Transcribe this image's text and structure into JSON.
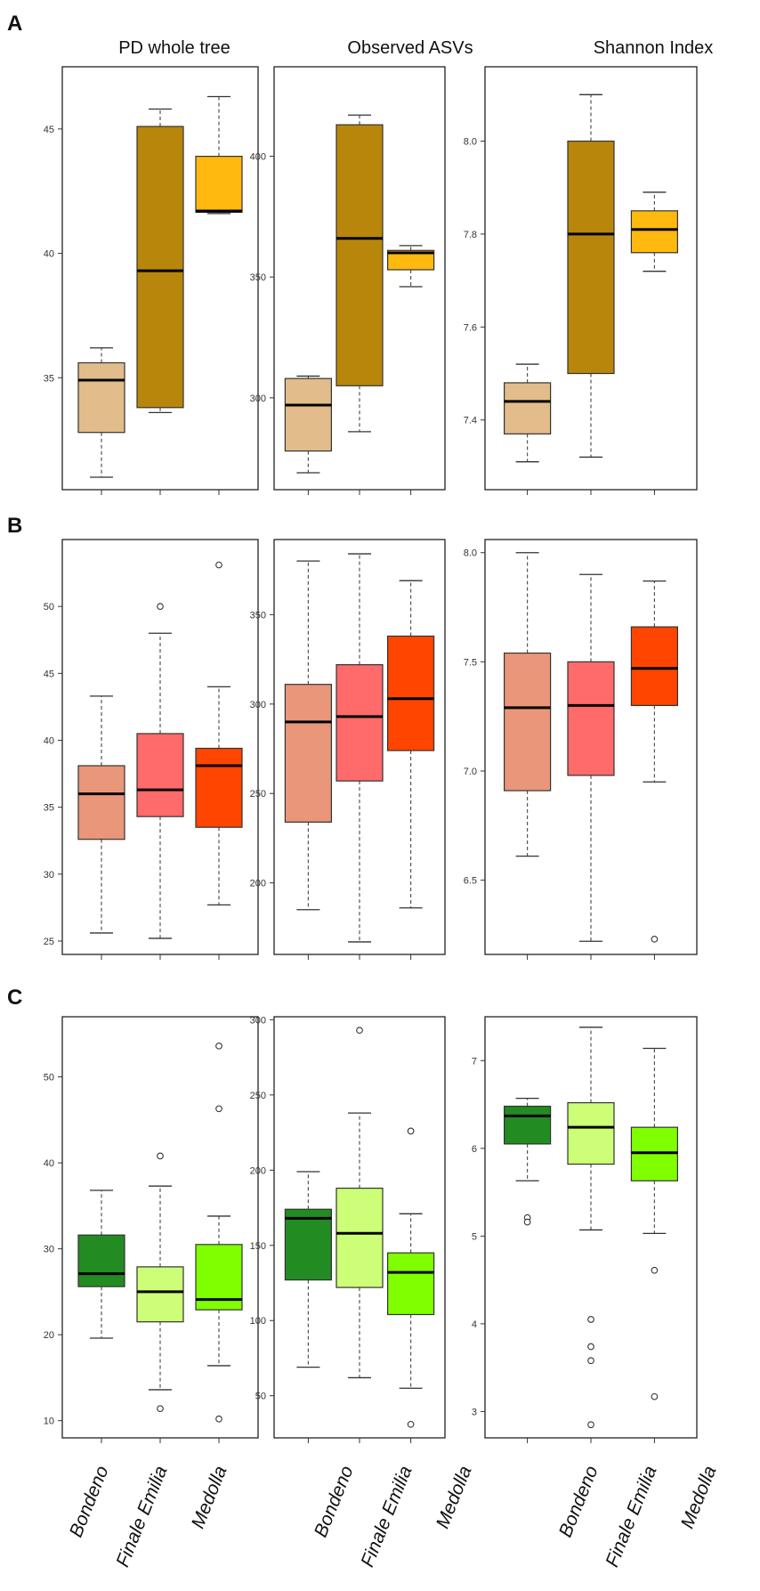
{
  "figure": {
    "panel_letters": [
      "A",
      "B",
      "C"
    ],
    "column_titles": [
      "PD whole tree",
      "Observed ASVs",
      "Shannon Index"
    ],
    "categories": [
      "Bondeno",
      "Finale Emilia",
      "Medolla"
    ]
  },
  "chart_data": [
    {
      "type": "boxplot",
      "row": "A",
      "title": "PD whole tree",
      "ylim": [
        30.5,
        47.5
      ],
      "ticks": [
        35,
        40,
        45
      ],
      "tick_labels": [
        "35",
        "40",
        "45"
      ],
      "categories": [
        "Bondeno",
        "Finale Emilia",
        "Medolla"
      ],
      "colors": [
        "#E2BC8A",
        "#B8860B",
        "#FFB90F"
      ],
      "boxes": [
        {
          "min": 31.0,
          "q1": 32.8,
          "median": 34.9,
          "q3": 35.6,
          "max": 36.2,
          "outliers": []
        },
        {
          "min": 33.6,
          "q1": 33.8,
          "median": 39.3,
          "q3": 45.1,
          "max": 45.8,
          "outliers": []
        },
        {
          "min": 41.6,
          "q1": 41.65,
          "median": 41.7,
          "q3": 43.9,
          "max": 46.3,
          "outliers": []
        }
      ]
    },
    {
      "type": "boxplot",
      "row": "A",
      "title": "Observed ASVs",
      "ylim": [
        262,
        437
      ],
      "ticks": [
        300,
        350,
        400
      ],
      "tick_labels": [
        "300",
        "350",
        "400"
      ],
      "categories": [
        "Bondeno",
        "Finale Emilia",
        "Medolla"
      ],
      "colors": [
        "#E2BC8A",
        "#B8860B",
        "#FFB90F"
      ],
      "boxes": [
        {
          "min": 269,
          "q1": 278,
          "median": 297,
          "q3": 308,
          "max": 309,
          "outliers": []
        },
        {
          "min": 286,
          "q1": 305,
          "median": 366,
          "q3": 413,
          "max": 417,
          "outliers": []
        },
        {
          "min": 346,
          "q1": 353,
          "median": 360,
          "q3": 361,
          "max": 363,
          "outliers": []
        }
      ]
    },
    {
      "type": "boxplot",
      "row": "A",
      "title": "Shannon Index",
      "ylim": [
        7.25,
        8.16
      ],
      "ticks": [
        7.4,
        7.6,
        7.8,
        8.0
      ],
      "tick_labels": [
        "7.4",
        "7.6",
        "7.8",
        "8.0"
      ],
      "categories": [
        "Bondeno",
        "Finale Emilia",
        "Medolla"
      ],
      "colors": [
        "#E2BC8A",
        "#B8860B",
        "#FFB90F"
      ],
      "boxes": [
        {
          "min": 7.31,
          "q1": 7.37,
          "median": 7.44,
          "q3": 7.48,
          "max": 7.52,
          "outliers": []
        },
        {
          "min": 7.32,
          "q1": 7.5,
          "median": 7.8,
          "q3": 8.0,
          "max": 8.1,
          "outliers": []
        },
        {
          "min": 7.72,
          "q1": 7.76,
          "median": 7.81,
          "q3": 7.85,
          "max": 7.89,
          "outliers": []
        }
      ]
    },
    {
      "type": "boxplot",
      "row": "B",
      "title": "PD whole tree",
      "ylim": [
        24,
        55
      ],
      "ticks": [
        25,
        30,
        35,
        40,
        45,
        50
      ],
      "tick_labels": [
        "25",
        "30",
        "35",
        "40",
        "45",
        "50"
      ],
      "categories": [
        "Bondeno",
        "Finale Emilia",
        "Medolla"
      ],
      "colors": [
        "#E9967A",
        "#FF6A6A",
        "#FF4500"
      ],
      "boxes": [
        {
          "min": 25.6,
          "q1": 32.6,
          "median": 36.0,
          "q3": 38.1,
          "max": 43.3,
          "outliers": []
        },
        {
          "min": 25.2,
          "q1": 34.3,
          "median": 36.3,
          "q3": 40.5,
          "max": 48.0,
          "outliers": [
            50.0
          ]
        },
        {
          "min": 27.7,
          "q1": 33.5,
          "median": 38.1,
          "q3": 39.4,
          "max": 44.0,
          "outliers": [
            53.1
          ]
        }
      ]
    },
    {
      "type": "boxplot",
      "row": "B",
      "title": "Observed ASVs",
      "ylim": [
        160,
        392
      ],
      "ticks": [
        200,
        250,
        300,
        350
      ],
      "tick_labels": [
        "200",
        "250",
        "300",
        "350"
      ],
      "categories": [
        "Bondeno",
        "Finale Emilia",
        "Medolla"
      ],
      "colors": [
        "#E9967A",
        "#FF6A6A",
        "#FF4500"
      ],
      "boxes": [
        {
          "min": 185,
          "q1": 234,
          "median": 290,
          "q3": 311,
          "max": 380,
          "outliers": []
        },
        {
          "min": 167,
          "q1": 257,
          "median": 293,
          "q3": 322,
          "max": 384,
          "outliers": []
        },
        {
          "min": 186,
          "q1": 274,
          "median": 303,
          "q3": 338,
          "max": 369,
          "outliers": []
        }
      ]
    },
    {
      "type": "boxplot",
      "row": "B",
      "title": "Shannon Index",
      "ylim": [
        6.16,
        8.06
      ],
      "ticks": [
        6.5,
        7.0,
        7.5,
        8.0
      ],
      "tick_labels": [
        "6.5",
        "7.0",
        "7.5",
        "8.0"
      ],
      "categories": [
        "Bondeno",
        "Finale Emilia",
        "Medolla"
      ],
      "colors": [
        "#E9967A",
        "#FF6A6A",
        "#FF4500"
      ],
      "boxes": [
        {
          "min": 6.61,
          "q1": 6.91,
          "median": 7.29,
          "q3": 7.54,
          "max": 8.0,
          "outliers": []
        },
        {
          "min": 6.22,
          "q1": 6.98,
          "median": 7.3,
          "q3": 7.5,
          "max": 7.9,
          "outliers": []
        },
        {
          "min": 6.95,
          "q1": 7.3,
          "median": 7.47,
          "q3": 7.66,
          "max": 7.87,
          "outliers": [
            6.23
          ]
        }
      ]
    },
    {
      "type": "boxplot",
      "row": "C",
      "title": "PD whole tree",
      "ylim": [
        8,
        57
      ],
      "ticks": [
        10,
        20,
        30,
        40,
        50
      ],
      "tick_labels": [
        "10",
        "20",
        "30",
        "40",
        "50"
      ],
      "categories": [
        "Bondeno",
        "Finale Emilia",
        "Medolla"
      ],
      "colors": [
        "#228B22",
        "#CCFF77",
        "#7FFF00"
      ],
      "boxes": [
        {
          "min": 19.6,
          "q1": 25.6,
          "median": 27.1,
          "q3": 31.6,
          "max": 36.8,
          "outliers": []
        },
        {
          "min": 13.6,
          "q1": 21.5,
          "median": 25.0,
          "q3": 27.9,
          "max": 37.3,
          "outliers": [
            40.8,
            11.4
          ]
        },
        {
          "min": 16.4,
          "q1": 22.9,
          "median": 24.1,
          "q3": 30.5,
          "max": 33.8,
          "outliers": [
            53.6,
            46.3,
            10.2
          ]
        }
      ]
    },
    {
      "type": "boxplot",
      "row": "C",
      "title": "Observed ASVs",
      "ylim": [
        22,
        302
      ],
      "ticks": [
        50,
        100,
        150,
        200,
        250,
        300
      ],
      "tick_labels": [
        "50",
        "100",
        "150",
        "200",
        "250",
        "300"
      ],
      "categories": [
        "Bondeno",
        "Finale Emilia",
        "Medolla"
      ],
      "colors": [
        "#228B22",
        "#CCFF77",
        "#7FFF00"
      ],
      "boxes": [
        {
          "min": 69,
          "q1": 127,
          "median": 168,
          "q3": 174,
          "max": 199,
          "outliers": []
        },
        {
          "min": 62,
          "q1": 122,
          "median": 158,
          "q3": 188,
          "max": 238,
          "outliers": [
            293
          ]
        },
        {
          "min": 55,
          "q1": 104,
          "median": 132,
          "q3": 145,
          "max": 171,
          "outliers": [
            226,
            31
          ]
        }
      ]
    },
    {
      "type": "boxplot",
      "row": "C",
      "title": "Shannon Index",
      "ylim": [
        2.7,
        7.5
      ],
      "ticks": [
        3,
        4,
        5,
        6,
        7
      ],
      "tick_labels": [
        "3",
        "4",
        "5",
        "6",
        "7"
      ],
      "categories": [
        "Bondeno",
        "Finale Emilia",
        "Medolla"
      ],
      "colors": [
        "#228B22",
        "#CCFF77",
        "#7FFF00"
      ],
      "boxes": [
        {
          "min": 5.63,
          "q1": 6.05,
          "median": 6.37,
          "q3": 6.48,
          "max": 6.57,
          "outliers": [
            5.21,
            5.16
          ]
        },
        {
          "min": 5.07,
          "q1": 5.82,
          "median": 6.24,
          "q3": 6.52,
          "max": 7.38,
          "outliers": [
            4.05,
            3.74,
            3.58,
            2.85
          ]
        },
        {
          "min": 5.03,
          "q1": 5.63,
          "median": 5.95,
          "q3": 6.24,
          "max": 7.14,
          "outliers": [
            4.61,
            3.17
          ]
        }
      ]
    }
  ]
}
